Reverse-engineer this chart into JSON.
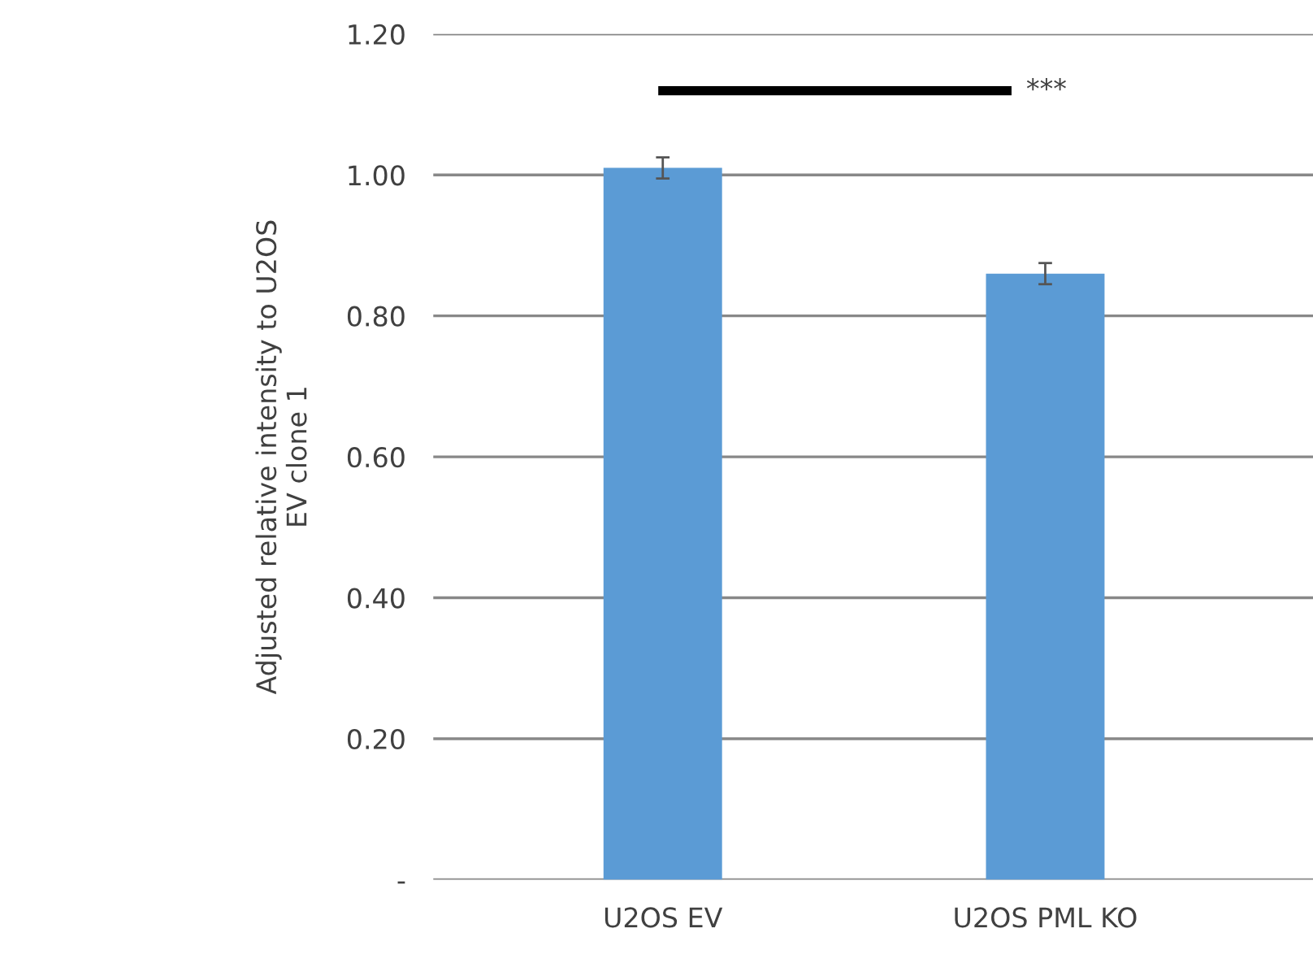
{
  "chart_data": {
    "type": "bar",
    "ylabel": "Adjusted relative intensity to U2OS\nEV clone 1",
    "categories": [
      "U2OS EV",
      "U2OS PML KO"
    ],
    "values": [
      1.01,
      0.86
    ],
    "errors": [
      0.015,
      0.015
    ],
    "color": "#5b9bd5",
    "ylim": [
      0,
      1.2
    ],
    "yticks": [
      {
        "value": 0,
        "label": "-"
      },
      {
        "value": 0.2,
        "label": "0.20"
      },
      {
        "value": 0.4,
        "label": "0.40"
      },
      {
        "value": 0.6,
        "label": "0.60"
      },
      {
        "value": 0.8,
        "label": "0.80"
      },
      {
        "value": 1.0,
        "label": "1.00"
      },
      {
        "value": 1.2,
        "label": "1.20"
      }
    ],
    "grid": "y",
    "annotations": [
      "***"
    ]
  }
}
